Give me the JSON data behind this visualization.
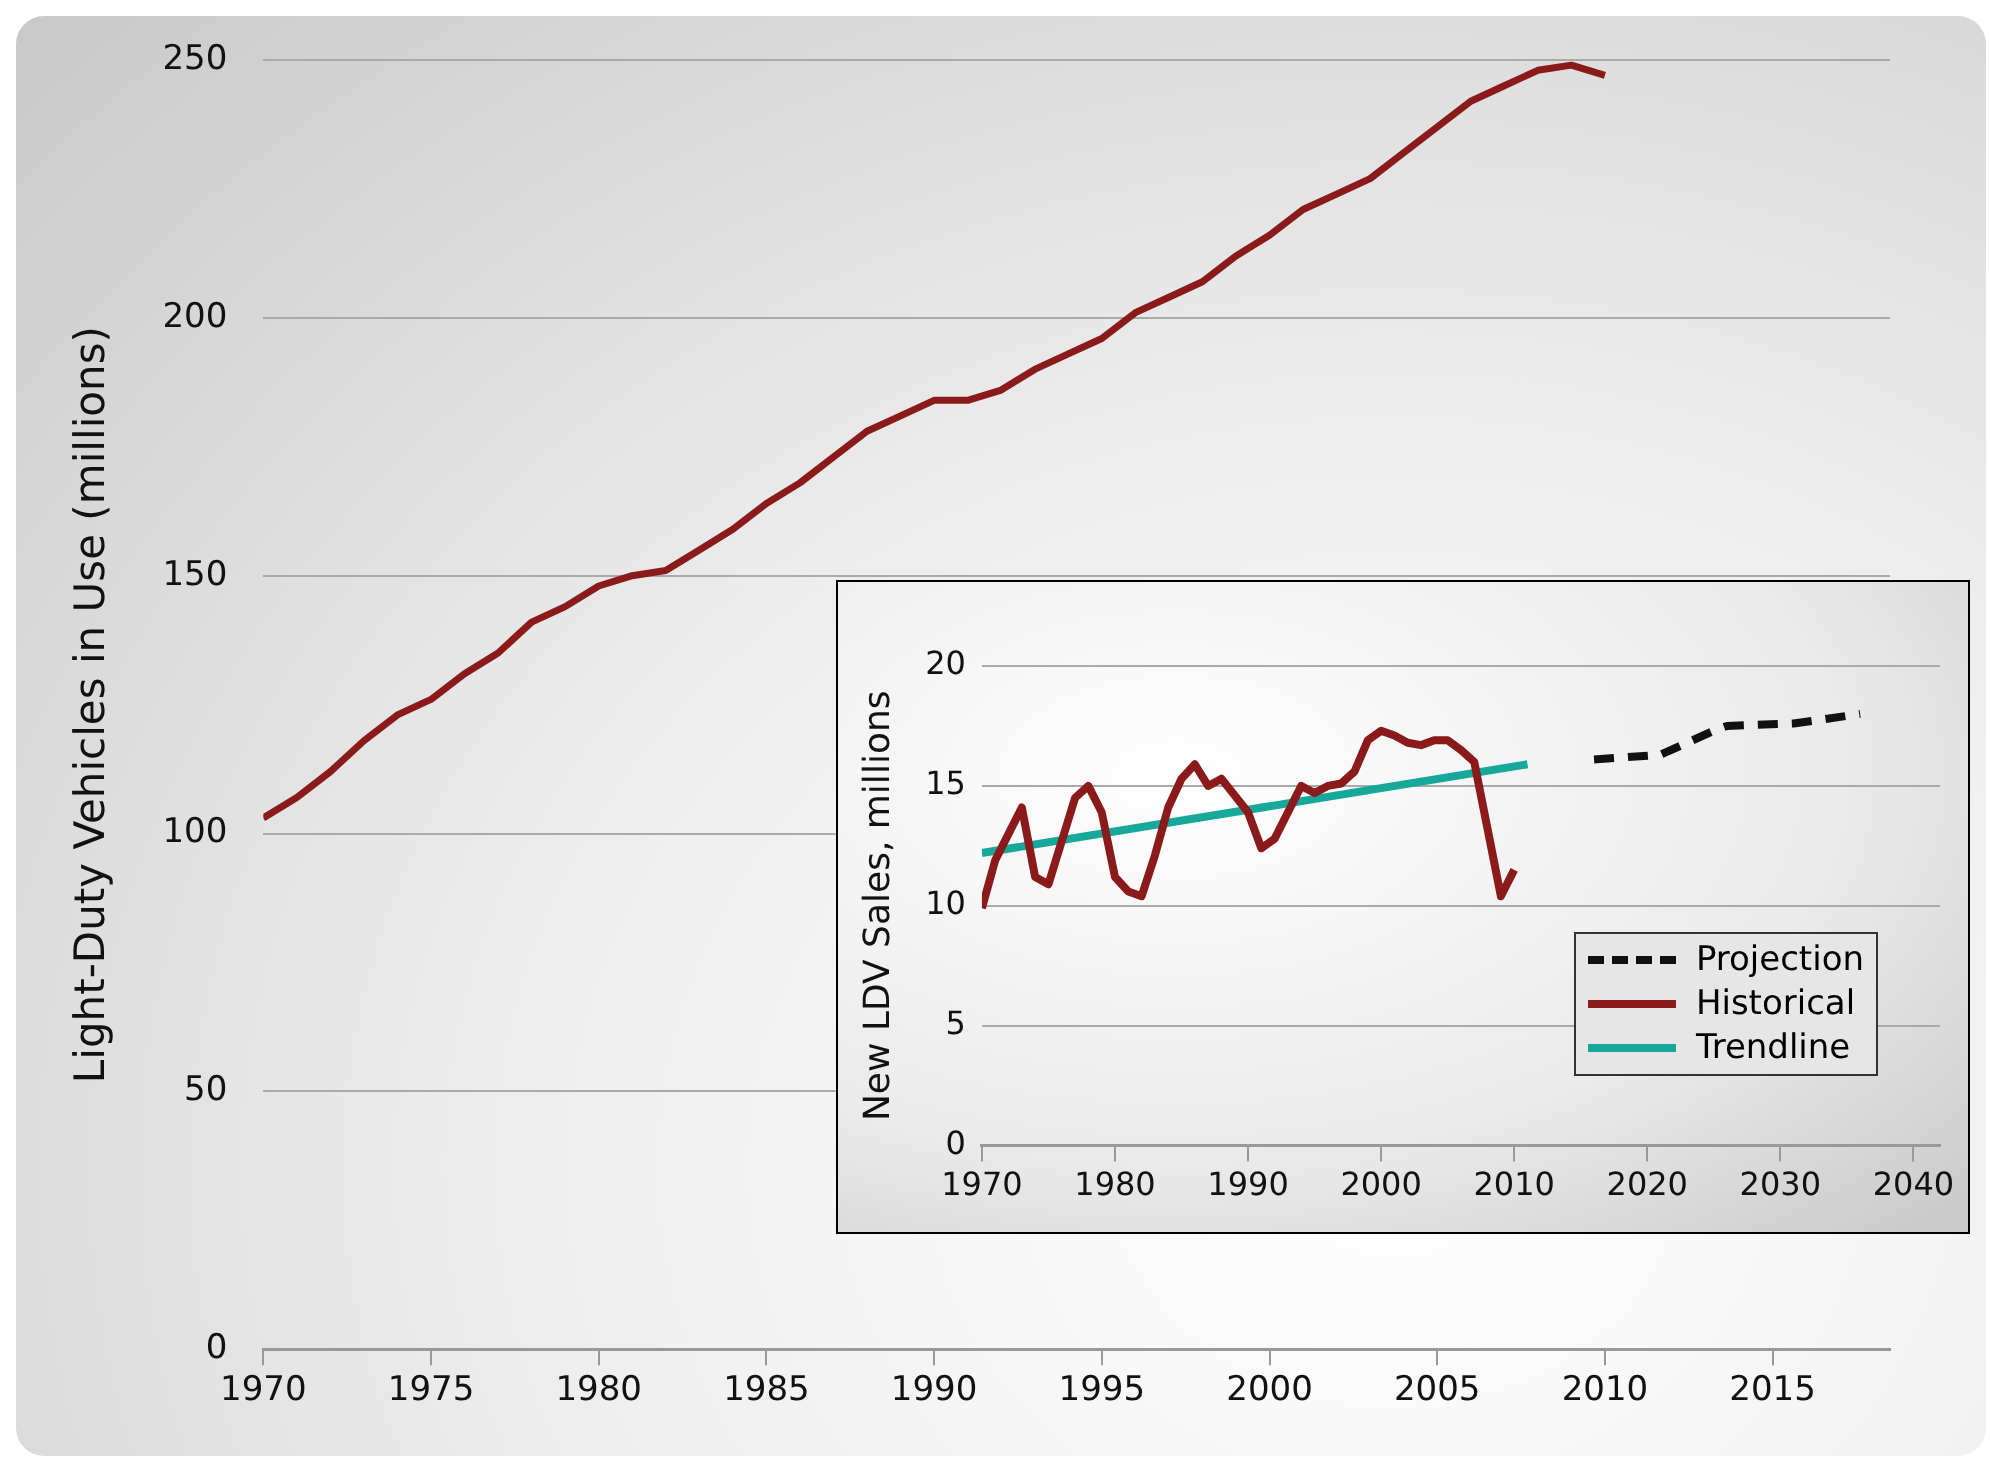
{
  "chart_data": [
    {
      "type": "line",
      "ylabel": "Light-Duty Vehicles in Use (millions)",
      "xlim": [
        1970,
        2018.5
      ],
      "xticks": [
        1970,
        1975,
        1980,
        1985,
        1990,
        1995,
        2000,
        2005,
        2010,
        2015
      ],
      "ylim": [
        0,
        250
      ],
      "yticks": [
        0,
        50,
        100,
        150,
        200,
        250
      ],
      "grid": "y",
      "marker": "none",
      "x": [
        1970,
        1971,
        1972,
        1973,
        1974,
        1975,
        1976,
        1977,
        1978,
        1979,
        1980,
        1981,
        1982,
        1983,
        1984,
        1985,
        1986,
        1987,
        1988,
        1989,
        1990,
        1991,
        1992,
        1993,
        1994,
        1995,
        1996,
        1997,
        1998,
        1999,
        2000,
        2001,
        2002,
        2003,
        2004,
        2005,
        2006,
        2007,
        2008,
        2009,
        2010
      ],
      "series": [
        {
          "color": "#8b1a1a",
          "values": [
            103,
            107,
            112,
            118,
            123,
            126,
            131,
            135,
            141,
            144,
            148,
            150,
            151,
            155,
            159,
            164,
            168,
            173,
            178,
            181,
            184,
            184,
            186,
            190,
            193,
            196,
            201,
            204,
            207,
            212,
            216,
            221,
            224,
            227,
            232,
            237,
            242,
            245,
            248,
            249,
            247
          ]
        }
      ]
    },
    {
      "type": "line",
      "ylabel": "New LDV Sales, millions",
      "xlim": [
        1970,
        2042
      ],
      "xticks": [
        1970,
        1980,
        1990,
        2000,
        2010,
        2020,
        2030,
        2040
      ],
      "ylim": [
        0,
        20
      ],
      "yticks": [
        0,
        5,
        10,
        15,
        20
      ],
      "grid": "y",
      "legend": "bottom right",
      "marker": "none",
      "series": [
        {
          "name": "Projection",
          "color": "#111111",
          "line_style": "dashed",
          "x": [
            2016,
            2021,
            2025,
            2026,
            2031,
            2036
          ],
          "values": [
            16.1,
            16.3,
            17.3,
            17.5,
            17.6,
            18.0
          ]
        },
        {
          "name": "Historical",
          "color": "#8b1a1a",
          "line_style": "solid",
          "x": [
            1970,
            1971,
            1972,
            1973,
            1974,
            1975,
            1976,
            1977,
            1978,
            1979,
            1980,
            1981,
            1982,
            1983,
            1984,
            1985,
            1986,
            1987,
            1988,
            1989,
            1990,
            1991,
            1992,
            1993,
            1994,
            1995,
            1996,
            1997,
            1998,
            1999,
            2000,
            2001,
            2002,
            2003,
            2004,
            2005,
            2006,
            2007,
            2008,
            2009,
            2010
          ],
          "values": [
            9.9,
            11.9,
            13.0,
            14.1,
            11.2,
            10.9,
            12.7,
            14.5,
            15.0,
            13.9,
            11.2,
            10.6,
            10.4,
            12.1,
            14.1,
            15.3,
            15.9,
            15.0,
            15.3,
            14.6,
            13.9,
            12.4,
            12.8,
            13.9,
            15.0,
            14.7,
            15.0,
            15.1,
            15.6,
            16.9,
            17.3,
            17.1,
            16.8,
            16.7,
            16.9,
            16.9,
            16.5,
            16.0,
            13.2,
            10.4,
            11.5
          ]
        },
        {
          "name": "Trendline",
          "color": "#17a89c",
          "line_style": "solid",
          "x": [
            1970,
            2011
          ],
          "values": [
            12.2,
            15.9
          ]
        }
      ]
    }
  ]
}
